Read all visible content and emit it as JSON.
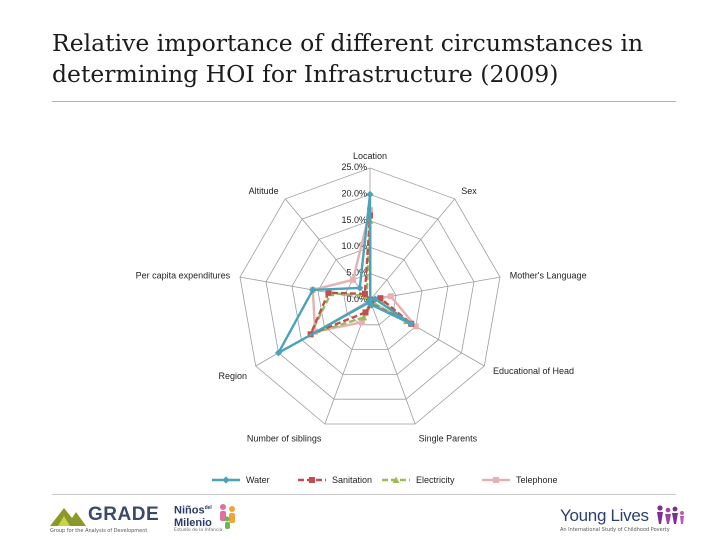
{
  "slide": {
    "title": "Relative importance of different circumstances in determining HOI for Infrastructure (2009)"
  },
  "chart_data": {
    "type": "radar",
    "axes": [
      "Location",
      "Sex",
      "Mother's Language",
      "Educational of Head",
      "Single Parents",
      "Number of siblings",
      "Region",
      "Per capita expenditures",
      "Altitude"
    ],
    "ticks": [
      "0.0%",
      "5.0%",
      "10.0%",
      "15.0%",
      "20.0%",
      "25.0%"
    ],
    "rlim": [
      0,
      25
    ],
    "legend_position": "bottom",
    "grid": true,
    "series": [
      {
        "name": "Water",
        "color": "#4aa3b8",
        "dash": "solid",
        "marker": "diamond",
        "values": [
          20.0,
          0.1,
          1.0,
          9.0,
          1.0,
          0.5,
          20.0,
          11.0,
          3.0
        ]
      },
      {
        "name": "Sanitation",
        "color": "#c0504d",
        "dash": "dash",
        "marker": "square",
        "values": [
          16.0,
          0.1,
          2.0,
          9.0,
          0.8,
          2.5,
          13.0,
          8.0,
          1.5
        ]
      },
      {
        "name": "Electricity",
        "color": "#9bbb59",
        "dash": "dash",
        "marker": "triangle",
        "values": [
          15.0,
          0.1,
          1.5,
          8.0,
          0.5,
          3.5,
          13.0,
          7.5,
          1.0
        ]
      },
      {
        "name": "Telephone",
        "color": "#e6b1b3",
        "dash": "solid",
        "marker": "square",
        "values": [
          17.0,
          0.1,
          4.0,
          10.0,
          0.8,
          4.5,
          12.0,
          11.0,
          5.0
        ]
      }
    ]
  },
  "logos": {
    "grade": {
      "name": "GRADE",
      "tagline": "Group for the Analysis of Development"
    },
    "ninos": {
      "name_line1": "Niños",
      "name_sup": "del",
      "name_line2": "Milenio",
      "tagline": "Estudio de la Infancia"
    },
    "young_lives": {
      "name": "Young Lives",
      "tagline": "An International Study of Childhood Poverty"
    }
  }
}
